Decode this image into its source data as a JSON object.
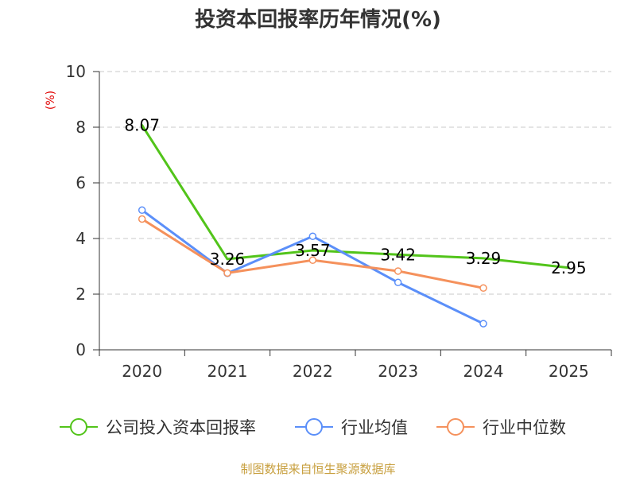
{
  "chart_data": {
    "type": "line",
    "title": "投资本回报率历年情况(%)",
    "ylabel": "(%)",
    "ylabel_color": "#e00000",
    "xlabel": "",
    "ylim": [
      0,
      10
    ],
    "yticks": [
      0,
      2,
      4,
      6,
      8,
      10
    ],
    "categories": [
      "2020",
      "2021",
      "2022",
      "2023",
      "2024",
      "2025"
    ],
    "grid": true,
    "legend_position": "bottom",
    "series": [
      {
        "name": "公司投入资本回报率",
        "color": "#52c41a",
        "values": [
          8.07,
          3.26,
          3.57,
          3.42,
          3.29,
          2.95
        ],
        "labels": [
          "8.07",
          "3.26",
          "3.57",
          "3.42",
          "3.29",
          "2.95"
        ],
        "show_markers": false
      },
      {
        "name": "行业均值",
        "color": "#5b8ff9",
        "values": [
          5.02,
          2.75,
          4.08,
          2.42,
          0.94,
          null
        ],
        "show_markers": true
      },
      {
        "name": "行业中位数",
        "color": "#f5915c",
        "values": [
          4.7,
          2.76,
          3.22,
          2.83,
          2.22,
          null
        ],
        "show_markers": true
      }
    ],
    "source": "制图数据来自恒生聚源数据库",
    "source_color": "#c8a040"
  }
}
